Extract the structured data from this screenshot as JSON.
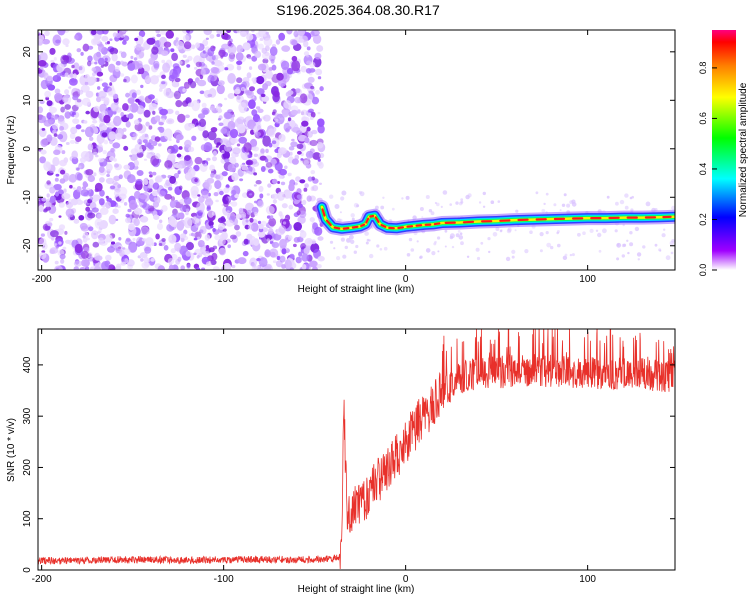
{
  "title": "S196.2025.364.08.30.R17",
  "colorbar": {
    "label": "Normalized spectral amplitude",
    "ticks": [
      "0.0",
      "0.2",
      "0.4",
      "0.6",
      "0.8"
    ]
  },
  "chart_data": [
    {
      "type": "heatmap",
      "xlabel": "Height of straight line (km)",
      "ylabel": "Frequency (Hz)",
      "xlim": [
        -202,
        148
      ],
      "ylim": [
        -25,
        24.5
      ],
      "xticks": [
        "-200",
        "-100",
        "0",
        "100"
      ],
      "yticks": [
        "-20",
        "-10",
        "0",
        "10",
        "20"
      ],
      "colorscale": [
        "#ffffff",
        "#8b00ff",
        "#0000ff",
        "#00ffff",
        "#00ff00",
        "#ffff00",
        "#ff0000"
      ],
      "noise_region_x": [
        -202,
        -46
      ],
      "ridge": {
        "x": [
          -46,
          -44,
          -40,
          -35,
          -30,
          -25,
          -22,
          -20,
          -17,
          -14,
          -10,
          -5,
          0,
          5,
          10,
          15,
          20,
          30,
          40,
          50,
          60,
          70,
          80,
          90,
          100,
          110,
          120,
          130,
          140,
          148
        ],
        "frequency_hz": [
          -12,
          -14.5,
          -16.2,
          -16.5,
          -16.3,
          -16.0,
          -15.5,
          -14.0,
          -13.8,
          -15.6,
          -16.3,
          -16.4,
          -16.1,
          -15.9,
          -15.7,
          -15.6,
          -15.3,
          -15.2,
          -15.0,
          -14.9,
          -14.7,
          -14.6,
          -14.5,
          -14.4,
          -14.3,
          -14.3,
          -14.2,
          -14.2,
          -14.1,
          -14.0
        ]
      }
    },
    {
      "type": "line",
      "xlabel": "Height of straight line (km)",
      "ylabel": "SNR (10 * v/v)",
      "xlim": [
        -202,
        148
      ],
      "ylim": [
        0,
        470
      ],
      "xticks": [
        "-200",
        "-100",
        "0",
        "100"
      ],
      "yticks": [
        "0",
        "100",
        "200",
        "300",
        "400"
      ],
      "series": [
        {
          "color": "#e8302a",
          "x": [
            -202,
            -180,
            -160,
            -140,
            -120,
            -100,
            -80,
            -60,
            -40,
            -36,
            -35,
            -34,
            -32,
            -30,
            -25,
            -20,
            -15,
            -10,
            -5,
            0,
            5,
            10,
            15,
            20,
            25,
            30,
            40,
            50,
            60,
            70,
            80,
            90,
            100,
            110,
            120,
            130,
            140,
            148
          ],
          "values": [
            18,
            19,
            20,
            20,
            19,
            20,
            21,
            20,
            22,
            25,
            70,
            320,
            90,
            110,
            130,
            150,
            175,
            200,
            220,
            250,
            275,
            305,
            320,
            345,
            360,
            375,
            382,
            385,
            388,
            390,
            388,
            386,
            385,
            384,
            383,
            382,
            380,
            378
          ]
        }
      ]
    }
  ]
}
